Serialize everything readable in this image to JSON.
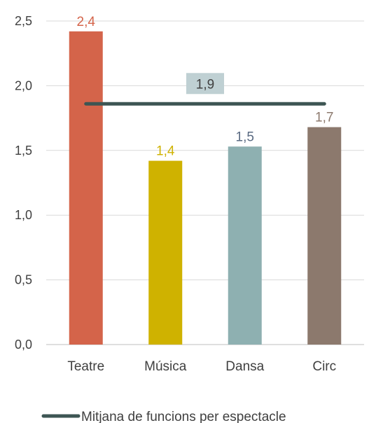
{
  "chart_data": {
    "type": "bar",
    "categories": [
      "Teatre",
      "Música",
      "Dansa",
      "Circ"
    ],
    "values": [
      2.42,
      1.42,
      1.53,
      1.68
    ],
    "value_labels": [
      "2,4",
      "1,4",
      "1,5",
      "1,7"
    ],
    "bar_colors": [
      "#d4644a",
      "#cfb200",
      "#8eb0b1",
      "#8c796d"
    ],
    "label_colors": [
      "#d4644a",
      "#cfb200",
      "#5a6a82",
      "#8c796d"
    ],
    "ylim": [
      0,
      2.5
    ],
    "yticks": [
      0,
      0.5,
      1.0,
      1.5,
      2.0,
      2.5
    ],
    "ytick_labels": [
      "0,0",
      "0,5",
      "1,0",
      "1,5",
      "2,0",
      "2,5"
    ],
    "grid": true,
    "reference_line": {
      "name": "Mitjana de funcions per espectacle",
      "value": 1.86,
      "label": "1,9",
      "color": "#3d5553",
      "label_bg": "#bfd0d3"
    },
    "legend": {
      "position": "bottom",
      "entries": [
        "Mitjana de funcions per espectacle"
      ]
    }
  }
}
